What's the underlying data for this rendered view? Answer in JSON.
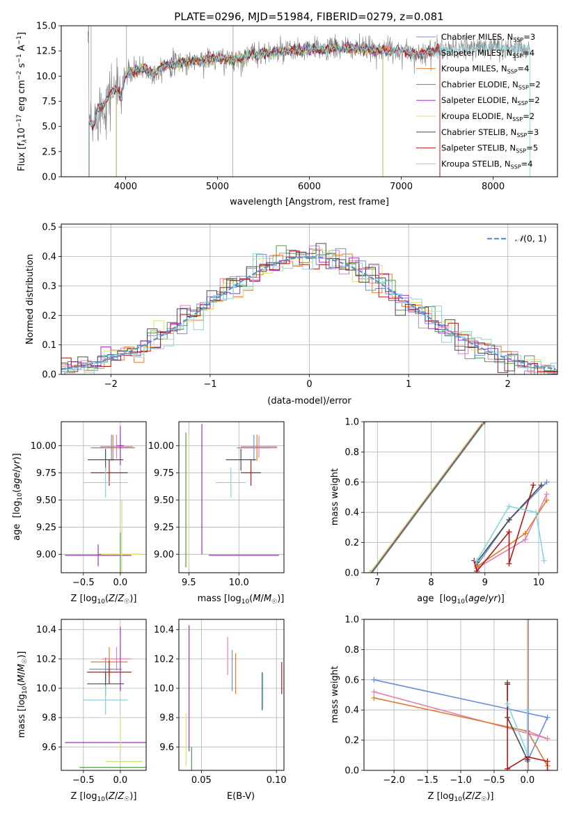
{
  "title": "PLATE=0296, MJD=51984, FIBERID=0279, z=0.081",
  "colors": {
    "Chabrier MILES": "#6a8fd8",
    "Salpeter MILES": "#e27fb6",
    "Kroupa MILES": "#e07b2a",
    "Chabrier ELODIE": "#4f9a4f",
    "Salpeter ELODIE": "#9b2ec0",
    "Kroupa ELODIE": "#d8e070",
    "Chabrier STELIB": "#4a4a4a",
    "Salpeter STELIB": "#b01818",
    "Kroupa STELIB": "#7fd8e0",
    "data": "#888888",
    "normal": "#5b8fd8"
  },
  "chart_data": [
    {
      "type": "line",
      "id": "spectrum",
      "title": "PLATE=0296, MJD=51984, FIBERID=0279, z=0.081",
      "xlabel": "wavelength [Angstrom, rest frame]",
      "ylabel": "Flux [f_λ10^{-17} erg cm^{-2} s^{-1} A^{-1}]",
      "xlim": [
        3300,
        8700
      ],
      "ylim": [
        0,
        15
      ],
      "xticks": [
        "4000",
        "5000",
        "6000",
        "7000",
        "8000"
      ],
      "yticks": [
        "0.0",
        "2.5",
        "5.0",
        "7.5",
        "10.0",
        "12.5",
        "15.0"
      ],
      "legend_position": "right",
      "legend": [
        {
          "name": "Chabrier MILES",
          "nssp": "3"
        },
        {
          "name": "Salpeter MILES",
          "nssp": "4"
        },
        {
          "name": "Kroupa MILES",
          "nssp": "4"
        },
        {
          "name": "Chabrier ELODIE",
          "nssp": "2"
        },
        {
          "name": "Salpeter ELODIE",
          "nssp": "2"
        },
        {
          "name": "Kroupa ELODIE",
          "nssp": "2"
        },
        {
          "name": "Chabrier STELIB",
          "nssp": "3"
        },
        {
          "name": "Salpeter STELIB",
          "nssp": "5"
        },
        {
          "name": "Kroupa STELIB",
          "nssp": "4"
        }
      ],
      "continuum": [
        [
          3600,
          5.5
        ],
        [
          3650,
          5.0
        ],
        [
          3700,
          6.8
        ],
        [
          3750,
          7.0
        ],
        [
          3800,
          7.8
        ],
        [
          3850,
          8.5
        ],
        [
          3900,
          8.8
        ],
        [
          3950,
          8.0
        ],
        [
          4000,
          10.2
        ],
        [
          4100,
          10.5
        ],
        [
          4200,
          10.8
        ],
        [
          4300,
          10.2
        ],
        [
          4400,
          11.0
        ],
        [
          4600,
          11.3
        ],
        [
          4800,
          11.5
        ],
        [
          5000,
          11.8
        ],
        [
          5200,
          11.6
        ],
        [
          5400,
          12.2
        ],
        [
          5600,
          12.3
        ],
        [
          5800,
          12.5
        ],
        [
          6000,
          12.6
        ],
        [
          6200,
          12.7
        ],
        [
          6400,
          12.8
        ],
        [
          6600,
          12.7
        ],
        [
          6800,
          12.6
        ],
        [
          7000,
          12.5
        ],
        [
          7200,
          12.2
        ],
        [
          7400,
          12.6
        ],
        [
          7600,
          12.7
        ],
        [
          7800,
          12.8
        ],
        [
          8000,
          12.9
        ],
        [
          8200,
          12.7
        ],
        [
          8400,
          12.8
        ]
      ]
    },
    {
      "type": "histogram",
      "id": "residuals",
      "xlabel": "(data-model)/error",
      "ylabel": "Normed distribution",
      "xlim": [
        -2.5,
        2.5
      ],
      "ylim": [
        0,
        0.51
      ],
      "xticks": [
        "−2",
        "−1",
        "0",
        "1",
        "2"
      ],
      "yticks": [
        "0.0",
        "0.1",
        "0.2",
        "0.3",
        "0.4",
        "0.5"
      ],
      "legend": "N(0,1)",
      "bin_width": 0.1
    },
    {
      "type": "scatter",
      "id": "age_vs_Z",
      "xlabel": "Z [log10(Z/Z☉)]",
      "ylabel": "age [log10(age/yr)]",
      "xlim": [
        -0.8,
        0.35
      ],
      "ylim": [
        8.83,
        10.22
      ],
      "xticks": [
        "−0.5",
        "0.0"
      ],
      "yticks": [
        "9.00",
        "9.25",
        "9.50",
        "9.75",
        "10.00"
      ],
      "points": [
        {
          "model": "Chabrier MILES",
          "x": -0.12,
          "y": 9.98,
          "ex": 0.25,
          "ey": 0.12
        },
        {
          "model": "Salpeter MILES",
          "x": -0.05,
          "y": 9.99,
          "ex": 0.22,
          "ey": 0.11
        },
        {
          "model": "Kroupa MILES",
          "x": -0.1,
          "y": 9.98,
          "ex": 0.3,
          "ey": 0.12
        },
        {
          "model": "Chabrier ELODIE",
          "x": 0.0,
          "y": 9.0,
          "ex": 0.3,
          "ey": 0.2
        },
        {
          "model": "Salpeter ELODIE",
          "x": -0.3,
          "y": 8.99,
          "ex": 0.45,
          "ey": 0.1
        },
        {
          "model": "Salpeter ELODIE",
          "x": 0.0,
          "y": 10.0,
          "ex": 0.05,
          "ey": 0.18
        },
        {
          "model": "Kroupa ELODIE",
          "x": 0.02,
          "y": 9.0,
          "ex": 0.28,
          "ey": 0.5
        },
        {
          "model": "Chabrier STELIB",
          "x": -0.2,
          "y": 9.87,
          "ex": 0.24,
          "ey": 0.1
        },
        {
          "model": "Salpeter STELIB",
          "x": -0.15,
          "y": 9.75,
          "ex": 0.25,
          "ey": 0.12
        },
        {
          "model": "Kroupa STELIB",
          "x": -0.2,
          "y": 9.66,
          "ex": 0.3,
          "ey": 0.14
        }
      ]
    },
    {
      "type": "scatter",
      "id": "age_vs_mass",
      "xlabel": "mass [log10(M/M☉)]",
      "ylabel": "",
      "xlim": [
        9.4,
        10.45
      ],
      "ylim": [
        8.83,
        10.22
      ],
      "xticks": [
        "9.5",
        "10.0"
      ],
      "yticks": [
        "9.00",
        "9.25",
        "9.50",
        "9.75",
        "10.00"
      ],
      "points": [
        {
          "model": "Chabrier MILES",
          "x": 10.15,
          "y": 9.98,
          "ex": 0.15,
          "ey": 0.12
        },
        {
          "model": "Salpeter MILES",
          "x": 10.2,
          "y": 9.99,
          "ex": 0.18,
          "ey": 0.1
        },
        {
          "model": "Kroupa MILES",
          "x": 10.18,
          "y": 9.98,
          "ex": 0.2,
          "ey": 0.12
        },
        {
          "model": "Chabrier ELODIE",
          "x": 9.47,
          "y": 9.5,
          "ex": 0.0,
          "ey": 0.62
        },
        {
          "model": "Salpeter ELODIE",
          "x": 9.63,
          "y": 9.6,
          "ex": 0.0,
          "ey": 0.6
        },
        {
          "model": "Salpeter ELODIE",
          "x": 10.05,
          "y": 8.99,
          "ex": 0.35,
          "ey": 0.0
        },
        {
          "model": "Kroupa ELODIE",
          "x": 9.5,
          "y": 9.5,
          "ex": 0.0,
          "ey": 0.6
        },
        {
          "model": "Chabrier STELIB",
          "x": 10.02,
          "y": 9.87,
          "ex": 0.15,
          "ey": 0.1
        },
        {
          "model": "Salpeter STELIB",
          "x": 10.12,
          "y": 9.75,
          "ex": 0.1,
          "ey": 0.12
        },
        {
          "model": "Kroupa STELIB",
          "x": 9.92,
          "y": 9.66,
          "ex": 0.15,
          "ey": 0.14
        }
      ]
    },
    {
      "type": "line",
      "id": "weight_vs_age",
      "xlabel": "age [log10(age/yr)]",
      "ylabel": "mass weight",
      "xlim": [
        6.75,
        10.35
      ],
      "ylim": [
        0,
        1.0
      ],
      "xticks": [
        "7",
        "8",
        "9",
        "10"
      ],
      "yticks": [
        "0.0",
        "0.2",
        "0.4",
        "0.6",
        "0.8",
        "1.0"
      ],
      "series": [
        {
          "model": "Chabrier MILES",
          "points": [
            [
              8.85,
              0.05
            ],
            [
              9.45,
              0.35
            ],
            [
              10.15,
              0.6
            ]
          ]
        },
        {
          "model": "Salpeter MILES",
          "points": [
            [
              8.85,
              0.03
            ],
            [
              9.75,
              0.22
            ],
            [
              10.15,
              0.52
            ]
          ]
        },
        {
          "model": "Kroupa MILES",
          "points": [
            [
              8.85,
              0.04
            ],
            [
              9.75,
              0.26
            ],
            [
              10.15,
              0.48
            ]
          ]
        },
        {
          "model": "Chabrier ELODIE",
          "points": [
            [
              6.9,
              0.0
            ],
            [
              9.0,
              1.0
            ]
          ]
        },
        {
          "model": "Salpeter ELODIE",
          "points": [
            [
              6.88,
              0.0
            ],
            [
              8.98,
              1.0
            ]
          ]
        },
        {
          "model": "Kroupa ELODIE",
          "points": [
            [
              6.86,
              0.0
            ],
            [
              8.96,
              1.0
            ]
          ]
        },
        {
          "model": "Chabrier STELIB",
          "points": [
            [
              8.85,
              0.07
            ],
            [
              9.45,
              0.35
            ],
            [
              10.05,
              0.58
            ]
          ]
        },
        {
          "model": "Salpeter STELIB",
          "points": [
            [
              8.8,
              0.08
            ],
            [
              8.85,
              0.01
            ],
            [
              9.45,
              0.27
            ],
            [
              9.45,
              0.06
            ],
            [
              9.9,
              0.58
            ]
          ]
        },
        {
          "model": "Kroupa STELIB",
          "points": [
            [
              8.85,
              0.08
            ],
            [
              9.45,
              0.44
            ],
            [
              9.95,
              0.4
            ],
            [
              10.1,
              0.08
            ]
          ]
        }
      ]
    },
    {
      "type": "scatter",
      "id": "mass_vs_Z",
      "xlabel": "Z [log10(Z/Z☉)]",
      "ylabel": "mass [log10(M/M☉)]",
      "xlim": [
        -0.8,
        0.35
      ],
      "ylim": [
        9.44,
        10.47
      ],
      "xticks": [
        "−0.5",
        "0.0"
      ],
      "yticks": [
        "9.6",
        "9.8",
        "10.0",
        "10.2",
        "10.4"
      ],
      "points": [
        {
          "model": "Chabrier MILES",
          "x": -0.2,
          "y": 10.13,
          "ex": 0.22,
          "ey": 0.08
        },
        {
          "model": "Salpeter MILES",
          "x": -0.05,
          "y": 10.2,
          "ex": 0.2,
          "ey": 0.08
        },
        {
          "model": "Kroupa MILES",
          "x": -0.15,
          "y": 10.18,
          "ex": 0.25,
          "ey": 0.1
        },
        {
          "model": "Chabrier ELODIE",
          "x": -0.1,
          "y": 9.46,
          "ex": 0.45,
          "ey": 0.0
        },
        {
          "model": "Salpeter ELODIE",
          "x": -0.2,
          "y": 9.63,
          "ex": 0.55,
          "ey": 0.0
        },
        {
          "model": "Salpeter ELODIE",
          "x": 0.0,
          "y": 10.2,
          "ex": 0.0,
          "ey": 0.22
        },
        {
          "model": "Kroupa ELODIE",
          "x": 0.05,
          "y": 9.5,
          "ex": 0.25,
          "ey": 0.0
        },
        {
          "model": "Kroupa ELODIE",
          "x": 0.0,
          "y": 9.7,
          "ex": 0.0,
          "ey": 0.12
        },
        {
          "model": "Chabrier STELIB",
          "x": -0.2,
          "y": 10.03,
          "ex": 0.25,
          "ey": 0.08
        },
        {
          "model": "Salpeter STELIB",
          "x": -0.15,
          "y": 10.11,
          "ex": 0.3,
          "ey": 0.08
        },
        {
          "model": "Kroupa STELIB",
          "x": -0.2,
          "y": 9.92,
          "ex": 0.3,
          "ey": 0.1
        }
      ]
    },
    {
      "type": "scatter",
      "id": "mass_vs_ebv",
      "xlabel": "E(B-V)",
      "ylabel": "",
      "xlim": [
        0.035,
        0.105
      ],
      "ylim": [
        9.44,
        10.47
      ],
      "xticks": [
        "0.05",
        "0.10"
      ],
      "yticks": [
        "9.6",
        "9.8",
        "10.0",
        "10.2",
        "10.4"
      ],
      "points": [
        {
          "model": "Chabrier MILES",
          "x": 0.0705,
          "y": 10.12,
          "ex": 0.0,
          "ey": 0.14
        },
        {
          "model": "Salpeter MILES",
          "x": 0.0675,
          "y": 10.22,
          "ex": 0.0,
          "ey": 0.13
        },
        {
          "model": "Kroupa MILES",
          "x": 0.0728,
          "y": 10.1,
          "ex": 0.0,
          "ey": 0.14
        },
        {
          "model": "Chabrier ELODIE",
          "x": 0.0435,
          "y": 9.5,
          "ex": 0.0,
          "ey": 0.1
        },
        {
          "model": "Salpeter ELODIE",
          "x": 0.0418,
          "y": 10.0,
          "ex": 0.0,
          "ey": 0.43
        },
        {
          "model": "Kroupa ELODIE",
          "x": 0.0398,
          "y": 9.65,
          "ex": 0.0,
          "ey": 0.18
        },
        {
          "model": "Chabrier STELIB",
          "x": 0.0905,
          "y": 9.98,
          "ex": 0.0,
          "ey": 0.13
        },
        {
          "model": "Salpeter STELIB",
          "x": 0.1035,
          "y": 10.07,
          "ex": 0.0,
          "ey": 0.11
        },
        {
          "model": "Kroupa STELIB",
          "x": 0.091,
          "y": 9.98,
          "ex": 0.0,
          "ey": 0.12
        }
      ]
    },
    {
      "type": "line",
      "id": "weight_vs_Z",
      "xlabel": "Z [log10(Z/Z☉)]",
      "ylabel": "mass weight",
      "xlim": [
        -2.45,
        0.45
      ],
      "ylim": [
        0,
        1.0
      ],
      "xticks": [
        "−2.0",
        "−1.5",
        "−1.0",
        "−0.5",
        "0.0"
      ],
      "yticks": [
        "0.0",
        "0.2",
        "0.4",
        "0.6",
        "0.8",
        "1.0"
      ],
      "series": [
        {
          "model": "Chabrier MILES",
          "points": [
            [
              -2.3,
              0.6
            ],
            [
              0.3,
              0.35
            ],
            [
              0.0,
              0.06
            ]
          ]
        },
        {
          "model": "Salpeter MILES",
          "points": [
            [
              -2.3,
              0.52
            ],
            [
              0.3,
              0.21
            ],
            [
              0.0,
              0.26
            ]
          ]
        },
        {
          "model": "Kroupa MILES",
          "points": [
            [
              -2.3,
              0.48
            ],
            [
              0.0,
              0.26
            ],
            [
              0.3,
              0.03
            ]
          ]
        },
        {
          "model": "Chabrier ELODIE",
          "points": [
            [
              0.0,
              0.0
            ],
            [
              0.0,
              1.0
            ]
          ]
        },
        {
          "model": "Salpeter ELODIE",
          "points": [
            [
              0.01,
              0.0
            ],
            [
              0.01,
              1.0
            ]
          ]
        },
        {
          "model": "Kroupa ELODIE",
          "points": [
            [
              0.0,
              0.0
            ],
            [
              0.0,
              1.0
            ]
          ]
        },
        {
          "model": "Chabrier STELIB",
          "points": [
            [
              -0.3,
              0.58
            ],
            [
              -0.3,
              0.35
            ],
            [
              0.0,
              0.07
            ]
          ]
        },
        {
          "model": "Salpeter STELIB",
          "points": [
            [
              -0.3,
              0.57
            ],
            [
              -0.3,
              0.01
            ],
            [
              0.0,
              0.09
            ],
            [
              0.3,
              0.06
            ],
            [
              0.3,
              0.0
            ]
          ]
        },
        {
          "model": "Kroupa STELIB",
          "points": [
            [
              -0.3,
              0.44
            ],
            [
              0.0,
              0.11
            ],
            [
              0.0,
              0.4
            ]
          ]
        }
      ]
    }
  ]
}
